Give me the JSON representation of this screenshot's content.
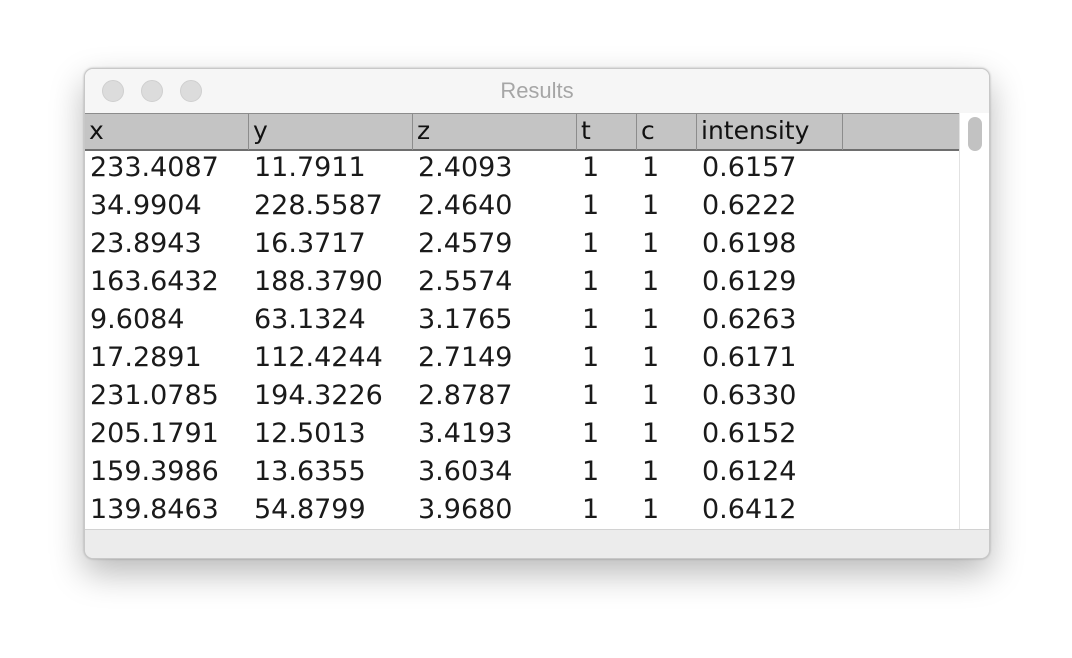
{
  "window": {
    "title": "Results"
  },
  "table": {
    "columns": [
      "x",
      "y",
      "z",
      "t",
      "c",
      "intensity",
      ""
    ],
    "rows": [
      [
        "233.4087",
        "11.7911",
        "2.4093",
        "1",
        "1",
        "0.6157"
      ],
      [
        "34.9904",
        "228.5587",
        "2.4640",
        "1",
        "1",
        "0.6222"
      ],
      [
        "23.8943",
        "16.3717",
        "2.4579",
        "1",
        "1",
        "0.6198"
      ],
      [
        "163.6432",
        "188.3790",
        "2.5574",
        "1",
        "1",
        "0.6129"
      ],
      [
        "9.6084",
        "63.1324",
        "3.1765",
        "1",
        "1",
        "0.6263"
      ],
      [
        "17.2891",
        "112.4244",
        "2.7149",
        "1",
        "1",
        "0.6171"
      ],
      [
        "231.0785",
        "194.3226",
        "2.8787",
        "1",
        "1",
        "0.6330"
      ],
      [
        "205.1791",
        "12.5013",
        "3.4193",
        "1",
        "1",
        "0.6152"
      ],
      [
        "159.3986",
        "13.6355",
        "3.6034",
        "1",
        "1",
        "0.6124"
      ],
      [
        "139.8463",
        "54.8799",
        "3.9680",
        "1",
        "1",
        "0.6412"
      ]
    ]
  }
}
